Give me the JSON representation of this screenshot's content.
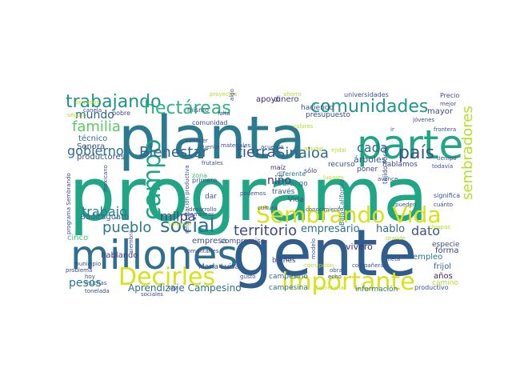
{
  "words": [
    {
      "text": "programa",
      "color": "#21a685"
    },
    {
      "text": "gente",
      "color": "#2f5d8c"
    },
    {
      "text": "planta",
      "color": "#2a7b8e"
    },
    {
      "text": "parte",
      "color": "#21a685"
    },
    {
      "text": "millones",
      "color": "#2f6f8e"
    },
    {
      "text": "Sembrando Vida",
      "color": "#d8e219"
    },
    {
      "text": "Decirles",
      "color": "#d8e219"
    },
    {
      "text": "importante",
      "color": "#d8e219"
    },
    {
      "text": "comunidades",
      "color": "#1f968b"
    },
    {
      "text": "trabajando",
      "color": "#21918c"
    },
    {
      "text": "hectáreas",
      "color": "#2fb47c"
    },
    {
      "text": "país",
      "color": "#3b528b"
    },
    {
      "text": "sembradores",
      "color": "#b5de2b"
    },
    {
      "text": "campo",
      "color": "#20a386"
    },
    {
      "text": "Bienestar",
      "color": "#33638d"
    },
    {
      "text": "tierra",
      "color": "#39568c"
    },
    {
      "text": "Sinaloa",
      "color": "#31688e"
    },
    {
      "text": "social",
      "color": "#2d708e"
    },
    {
      "text": "territorio",
      "color": "#3e4a89"
    },
    {
      "text": "familia",
      "color": "#5ec962"
    },
    {
      "text": "gobierno",
      "color": "#2c728e"
    },
    {
      "text": "mundo",
      "color": "#33638d"
    },
    {
      "text": "trabajo",
      "color": "#287c8e"
    },
    {
      "text": "pueblo",
      "color": "#2a788e"
    },
    {
      "text": "milpa",
      "color": "#3f4788"
    },
    {
      "text": "pesos",
      "color": "#2a788e"
    },
    {
      "text": "niño",
      "color": "#46327e"
    },
    {
      "text": "cada",
      "color": "#2d708e"
    },
    {
      "text": "dato",
      "color": "#3b528b"
    },
    {
      "text": "hablo",
      "color": "#31688e"
    },
    {
      "text": "empresario",
      "color": "#2c728e"
    },
    {
      "text": "Aprendizaje Campesino",
      "color": "#2c728e"
    },
    {
      "text": "árboles",
      "color": "#39568c"
    },
    {
      "text": "apoyo",
      "color": "#482677"
    },
    {
      "text": "dinero",
      "color": "#404387"
    },
    {
      "text": "mayor",
      "color": "#3e4a89"
    },
    {
      "text": "técnico",
      "color": "#2c728e"
    },
    {
      "text": "Sonora",
      "color": "#3b528b"
    },
    {
      "text": "productores",
      "color": "#3b528b"
    },
    {
      "text": "Badiraguato",
      "color": "#31688e"
    },
    {
      "text": "cinco",
      "color": "#44bf70"
    },
    {
      "text": "hablando",
      "color": "#443983"
    },
    {
      "text": "empresa",
      "color": "#3b528b"
    },
    {
      "text": "compromiso",
      "color": "#3f4788"
    },
    {
      "text": "María Luisa",
      "color": "#3b528b"
    },
    {
      "text": "bienes",
      "color": "#3b528b"
    },
    {
      "text": "campesino",
      "color": "#2d708e"
    },
    {
      "text": "campesina",
      "color": "#2d708e"
    },
    {
      "text": "vivero",
      "color": "#46327e"
    },
    {
      "text": "empleo",
      "color": "#2a788e"
    },
    {
      "text": "forma",
      "color": "#3f4788"
    },
    {
      "text": "años",
      "color": "#482173"
    },
    {
      "text": "camino",
      "color": "#b5de2b"
    },
    {
      "text": "información",
      "color": "#2a788e"
    },
    {
      "text": "frijol",
      "color": "#31688e"
    },
    {
      "text": "especie",
      "color": "#3b528b"
    },
    {
      "text": "haciendo",
      "color": "#3b528b"
    },
    {
      "text": "presupuesto",
      "color": "#3e4a89"
    },
    {
      "text": "hablamos",
      "color": "#3f4788"
    },
    {
      "text": "recurso",
      "color": "#3b528b"
    },
    {
      "text": "Durango",
      "color": "#2a788e"
    },
    {
      "text": "través",
      "color": "#39568c"
    },
    {
      "text": "Vida",
      "color": "#3e4a89"
    },
    {
      "text": "maíz",
      "color": "#46327e"
    },
    {
      "text": "diferente",
      "color": "#2a788e"
    },
    {
      "text": "primero",
      "color": "#3b528b"
    },
    {
      "text": "poner",
      "color": "#3e4a89"
    },
    {
      "text": "sólo",
      "color": "#3f4788"
    },
    {
      "text": "bien",
      "color": "#3e4a89"
    },
    {
      "text": "comunidad",
      "color": "#3e4a89"
    },
    {
      "text": "mismo",
      "color": "#3e4a89"
    },
    {
      "text": "pobre",
      "color": "#3f4788"
    },
    {
      "text": "Precio",
      "color": "#3e4a89"
    },
    {
      "text": "universidades",
      "color": "#3b528b"
    },
    {
      "text": "tejido social",
      "color": "#3b528b"
    },
    {
      "text": "Baja California",
      "color": "#2a788e"
    },
    {
      "text": "dar",
      "color": "#3b528b"
    },
    {
      "text": "zona",
      "color": "#44bf70"
    },
    {
      "text": "productivo",
      "color": "#3b528b"
    },
    {
      "text": "significa",
      "color": "#3b528b"
    },
    {
      "text": "tonelada",
      "color": "#3e4a89"
    },
    {
      "text": "pueden",
      "color": "#3b528b"
    },
    {
      "text": "tiempo",
      "color": "#3e4a89"
    },
    {
      "text": "proyectos",
      "color": "#b5de2b"
    },
    {
      "text": "privados",
      "color": "#b5de2b"
    },
    {
      "text": "cuánto",
      "color": "#3f4788"
    },
    {
      "text": "frontera",
      "color": "#3b528b"
    },
    {
      "text": "municipio",
      "color": "#3e4a89"
    },
    {
      "text": "compañeras",
      "color": "#3b528b"
    },
    {
      "text": "ahorro",
      "color": "#b5de2b"
    },
    {
      "text": "programa Sembrando",
      "color": "#3e4a89"
    },
    {
      "text": "lugares",
      "color": "#b5de2b"
    },
    {
      "text": "frutales",
      "color": "#3b528b"
    },
    {
      "text": "cultura",
      "color": "#3e4a89"
    },
    {
      "text": "conocimiento",
      "color": "#3b528b"
    },
    {
      "text": "reforestación productiva",
      "color": "#3b528b"
    },
    {
      "text": "Secretaría",
      "color": "#b5de2b"
    },
    {
      "text": "corrupción",
      "color": "#b5de2b"
    },
    {
      "text": "acuerdo",
      "color": "#3b528b"
    },
    {
      "text": "materiales",
      "color": "#3e4a89"
    },
    {
      "text": "cuenta",
      "color": "#3b528b"
    },
    {
      "text": "gusto",
      "color": "#3b528b"
    },
    {
      "text": "comentarles",
      "color": "#3e4a89"
    },
    {
      "text": "desarrollo",
      "color": "#3b528b"
    },
    {
      "text": "asambleas",
      "color": "#3b528b"
    },
    {
      "text": "vez",
      "color": "#3e4a89"
    },
    {
      "text": "hoy",
      "color": "#3e4a89"
    },
    {
      "text": "muchas",
      "color": "#3b528b"
    },
    {
      "text": "siembra",
      "color": "#3b528b"
    },
    {
      "text": "conocer",
      "color": "#3e4a89"
    },
    {
      "text": "ayudar",
      "color": "#b5de2b"
    },
    {
      "text": "valores",
      "color": "#b5de2b"
    },
    {
      "text": "algo",
      "color": "#3e4a89"
    },
    {
      "text": "falta",
      "color": "#3b528b"
    },
    {
      "text": "mejor",
      "color": "#3b528b"
    },
    {
      "text": "todavía",
      "color": "#3b528b"
    },
    {
      "text": "grande",
      "color": "#b5de2b"
    },
    {
      "text": "meta",
      "color": "#3b528b"
    },
    {
      "text": "chiapas",
      "color": "#b5de2b"
    },
    {
      "text": "problema",
      "color": "#3e4a89"
    },
    {
      "text": "seguro",
      "color": "#b5de2b"
    },
    {
      "text": "canela",
      "color": "#3e4a89"
    },
    {
      "text": "mexicano",
      "color": "#3b528b"
    },
    {
      "text": "sembrar",
      "color": "#b5de2b"
    },
    {
      "text": "podemos",
      "color": "#3b528b"
    },
    {
      "text": "echo",
      "color": "#3b528b"
    },
    {
      "text": "obra",
      "color": "#3b528b"
    },
    {
      "text": "ir",
      "color": "#3e4a89"
    },
    {
      "text": "avance",
      "color": "#3b528b"
    },
    {
      "text": "sociales",
      "color": "#3e4a89"
    },
    {
      "text": "modelo",
      "color": "#3b528b"
    },
    {
      "text": "jóvenes",
      "color": "#3b528b"
    },
    {
      "text": "ejidal",
      "color": "#b5de2b"
    }
  ]
}
